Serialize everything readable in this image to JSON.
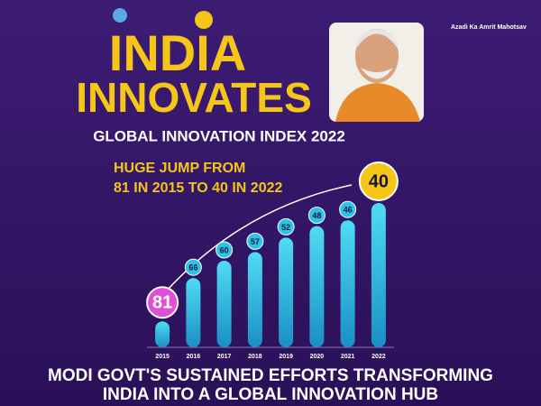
{
  "chart_data": {
    "type": "bar",
    "title": [
      "INDIA",
      "INNOVATES"
    ],
    "heading": "GLOBAL INNOVATION INDEX  2022",
    "subtitle": [
      "HUGE JUMP FROM",
      "81 IN 2015 TO 40 IN 2022"
    ],
    "footer": [
      "MODI GOVT'S SUSTAINED EFFORTS TRANSFORMING",
      "INDIA INTO A GLOBAL INNOVATION HUB"
    ],
    "logo": "Azadi Ka Amrit Mahotsav",
    "categories": [
      "2015",
      "2016",
      "2017",
      "2018",
      "2019",
      "2020",
      "2021",
      "2022"
    ],
    "values": [
      81,
      66,
      60,
      57,
      52,
      48,
      46,
      40
    ],
    "color": "#2bc4e6",
    "ylim": [
      90,
      35
    ]
  }
}
